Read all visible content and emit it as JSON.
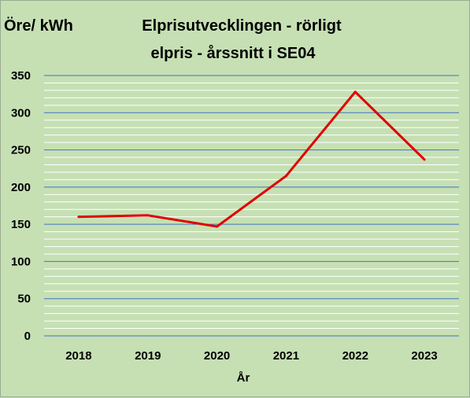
{
  "chart_data": {
    "type": "line",
    "title_line1": "Elprisutvecklingen - rörligt",
    "title_line2": "elpris - årssnitt i SE04",
    "ylabel": "Öre/ kWh",
    "xlabel": "År",
    "categories": [
      "2018",
      "2019",
      "2020",
      "2021",
      "2022",
      "2023"
    ],
    "series": [
      {
        "values": [
          160,
          162,
          147,
          215,
          328,
          237
        ]
      }
    ],
    "ylim": [
      0,
      350
    ],
    "yticks": [
      0,
      50,
      100,
      150,
      200,
      250,
      300,
      350
    ],
    "minor_grid_step": 10,
    "grid": true,
    "legend": "none",
    "colors": {
      "background": "#c6e0b4",
      "major_grid": "#4472c4",
      "minor_grid": "#ffffff",
      "line": "#e00000"
    }
  }
}
